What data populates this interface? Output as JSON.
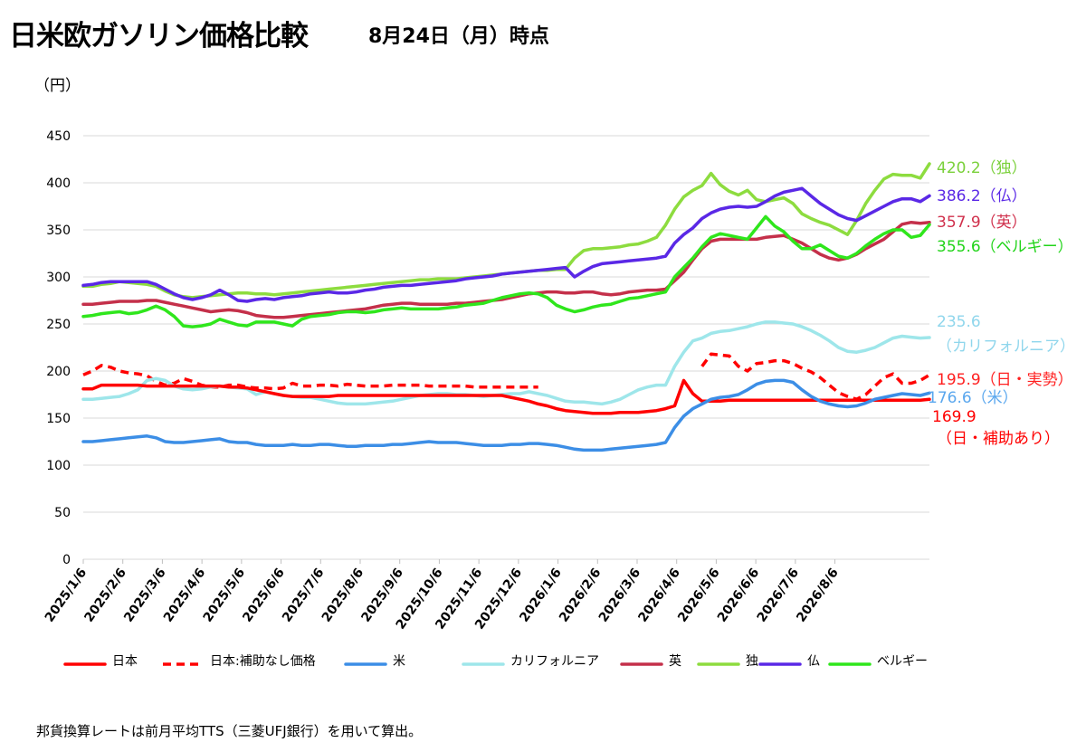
{
  "header": {
    "title": "日米欧ガソリン価格比較",
    "subtitle": "8月24日（月）時点",
    "y_unit": "（円）"
  },
  "footnote": "邦貨換算レートは前月平均TTS（三菱UFJ銀行）を用いて算出。",
  "chart_data": {
    "type": "line",
    "x_unit": "week",
    "x_start": "2025/1/6",
    "x_ticks": [
      "2025/1/6",
      "2025/2/6",
      "2025/3/6",
      "2025/4/6",
      "2025/5/6",
      "2025/6/6",
      "2025/7/6",
      "2025/8/6",
      "2025/9/6",
      "2025/10/6",
      "2025/11/6",
      "2025/12/6",
      "2026/1/6",
      "2026/2/6",
      "2026/3/6",
      "2026/4/6",
      "2026/5/6",
      "2026/6/6",
      "2026/7/6",
      "2026/8/6"
    ],
    "y_ticks": [
      0,
      50,
      100,
      150,
      200,
      250,
      300,
      350,
      400,
      450
    ],
    "ylim": [
      0,
      450
    ],
    "grid": true,
    "legend_position": "bottom",
    "series": [
      {
        "name": "日本",
        "color": "#ff0000",
        "dash": false,
        "width": 3.5,
        "values": [
          181,
          181,
          185,
          185,
          185,
          185,
          185,
          184,
          184,
          184,
          184,
          184,
          184,
          184,
          184,
          184,
          183,
          183,
          182,
          180,
          178,
          176,
          174,
          173,
          173,
          173,
          173,
          173,
          174,
          174,
          174,
          174,
          174,
          174,
          174,
          174,
          174,
          174,
          174,
          174,
          174,
          174,
          174,
          174,
          174,
          174,
          174,
          172,
          170,
          168,
          165,
          163,
          160,
          158,
          157,
          156,
          155,
          155,
          155,
          156,
          156,
          156,
          157,
          158,
          160,
          163,
          190,
          176,
          168,
          168,
          168,
          169,
          169,
          169,
          169,
          169,
          169,
          169,
          169,
          169,
          169,
          169,
          169,
          169,
          169,
          169,
          169,
          169,
          169,
          169,
          169,
          169,
          169,
          169.9
        ],
        "end_label": [
          "169.9",
          "（日・補助あり）"
        ],
        "label_color": "#ff0000"
      },
      {
        "name": "日本:補助なし価格",
        "color": "#ff0000",
        "dash": true,
        "width": 3.5,
        "values": [
          196,
          200,
          206,
          204,
          200,
          198,
          197,
          195,
          189,
          185,
          187,
          192,
          189,
          185,
          183,
          183,
          185,
          185,
          183,
          182,
          182,
          181,
          182,
          187,
          184,
          184,
          185,
          185,
          184,
          186,
          185,
          184,
          184,
          184,
          185,
          185,
          185,
          185,
          184,
          184,
          184,
          184,
          184,
          183,
          183,
          183,
          183,
          183,
          183,
          183,
          183,
          null,
          null,
          null,
          null,
          null,
          null,
          null,
          null,
          null,
          null,
          null,
          null,
          null,
          null,
          null,
          null,
          null,
          205,
          218,
          217,
          216,
          205,
          200,
          208,
          209,
          211,
          211,
          208,
          203,
          199,
          193,
          185,
          177,
          173,
          170,
          175,
          184,
          193,
          197,
          187,
          187,
          190,
          195.9
        ],
        "end_label": [
          "195.9（日・実勢）"
        ],
        "label_color": "#ff2020"
      },
      {
        "name": "米",
        "color": "#3c8ee6",
        "dash": false,
        "width": 3.5,
        "values": [
          125,
          125,
          126,
          127,
          128,
          129,
          130,
          131,
          129,
          125,
          124,
          124,
          125,
          126,
          127,
          128,
          125,
          124,
          124,
          122,
          121,
          121,
          121,
          122,
          121,
          121,
          122,
          122,
          121,
          120,
          120,
          121,
          121,
          121,
          122,
          122,
          123,
          124,
          125,
          124,
          124,
          124,
          123,
          122,
          121,
          121,
          121,
          122,
          122,
          123,
          123,
          122,
          121,
          119,
          117,
          116,
          116,
          116,
          117,
          118,
          119,
          120,
          121,
          122,
          124,
          140,
          152,
          160,
          165,
          170,
          172,
          173,
          175,
          180,
          186,
          189,
          190,
          190,
          188,
          180,
          173,
          168,
          165,
          163,
          162,
          163,
          166,
          170,
          172,
          174,
          176,
          175,
          174,
          176.6
        ],
        "end_label": [
          "176.6（米）"
        ],
        "label_color": "#5aa7ee"
      },
      {
        "name": "カリフォルニア",
        "color": "#9ee6ea",
        "dash": false,
        "width": 3.5,
        "values": [
          170,
          170,
          171,
          172,
          173,
          176,
          180,
          190,
          192,
          190,
          184,
          181,
          180,
          181,
          183,
          184,
          183,
          182,
          181,
          175,
          178,
          176,
          174,
          173,
          172,
          172,
          170,
          168,
          166,
          165,
          165,
          165,
          166,
          167,
          168,
          170,
          172,
          174,
          175,
          176,
          176,
          175,
          175,
          174,
          173,
          174,
          175,
          176,
          176,
          178,
          176,
          174,
          171,
          168,
          167,
          167,
          166,
          165,
          167,
          170,
          175,
          180,
          183,
          185,
          185,
          205,
          220,
          232,
          235,
          240,
          242,
          243,
          245,
          247,
          250,
          252,
          252,
          251,
          250,
          247,
          243,
          238,
          232,
          225,
          221,
          220,
          222,
          225,
          230,
          235,
          237,
          236,
          235,
          235.6
        ],
        "end_label": [
          "235.6",
          "（カリフォルニア）"
        ],
        "label_color": "#8fd6ec"
      },
      {
        "name": "英",
        "color": "#c4304a",
        "dash": false,
        "width": 3.5,
        "values": [
          271,
          271,
          272,
          273,
          274,
          274,
          274,
          275,
          275,
          273,
          271,
          269,
          267,
          265,
          263,
          264,
          265,
          264,
          262,
          259,
          258,
          257,
          257,
          258,
          259,
          260,
          261,
          262,
          263,
          264,
          265,
          266,
          268,
          270,
          271,
          272,
          272,
          271,
          271,
          271,
          271,
          272,
          272,
          273,
          274,
          275,
          276,
          278,
          280,
          282,
          283,
          284,
          284,
          283,
          283,
          284,
          284,
          282,
          281,
          282,
          284,
          285,
          286,
          286,
          287,
          296,
          305,
          318,
          330,
          338,
          340,
          340,
          340,
          340,
          340,
          342,
          343,
          344,
          340,
          336,
          330,
          324,
          320,
          318,
          320,
          324,
          330,
          335,
          340,
          348,
          356,
          358,
          357,
          357.9
        ],
        "end_label": [
          "357.9（英）"
        ],
        "label_color": "#d0304c"
      },
      {
        "name": "独",
        "color": "#8ddc3f",
        "dash": false,
        "width": 3.5,
        "values": [
          290,
          290,
          292,
          293,
          295,
          294,
          293,
          292,
          290,
          285,
          281,
          279,
          278,
          279,
          280,
          281,
          282,
          283,
          283,
          282,
          282,
          281,
          282,
          283,
          284,
          285,
          286,
          287,
          288,
          289,
          290,
          291,
          292,
          293,
          294,
          295,
          296,
          297,
          297,
          298,
          298,
          298,
          299,
          300,
          301,
          302,
          303,
          304,
          305,
          306,
          307,
          307,
          308,
          308,
          320,
          328,
          330,
          330,
          331,
          332,
          334,
          335,
          338,
          342,
          355,
          372,
          385,
          392,
          397,
          410,
          398,
          391,
          387,
          392,
          382,
          380,
          382,
          384,
          378,
          367,
          362,
          358,
          355,
          350,
          345,
          360,
          378,
          392,
          404,
          409,
          408,
          408,
          405,
          420.2
        ],
        "end_label": [
          "420.2（独）"
        ],
        "label_color": "#7ad03a"
      },
      {
        "name": "仏",
        "color": "#5a28e6",
        "dash": false,
        "width": 3.5,
        "values": [
          291,
          292,
          294,
          295,
          295,
          295,
          295,
          295,
          292,
          287,
          282,
          278,
          276,
          278,
          281,
          286,
          281,
          275,
          274,
          276,
          277,
          276,
          278,
          279,
          280,
          282,
          283,
          284,
          283,
          283,
          284,
          286,
          287,
          289,
          290,
          291,
          291,
          292,
          293,
          294,
          295,
          296,
          298,
          299,
          300,
          301,
          303,
          304,
          305,
          306,
          307,
          308,
          309,
          310,
          300,
          306,
          311,
          314,
          315,
          316,
          317,
          318,
          319,
          320,
          322,
          336,
          345,
          352,
          362,
          368,
          372,
          374,
          375,
          374,
          375,
          380,
          386,
          390,
          392,
          394,
          386,
          378,
          372,
          366,
          362,
          360,
          365,
          370,
          375,
          380,
          383,
          383,
          380,
          386.2
        ],
        "end_label": [
          "386.2（仏）"
        ],
        "label_color": "#5a28e6"
      },
      {
        "name": "ベルギー",
        "color": "#2fe61c",
        "dash": false,
        "width": 3.5,
        "values": [
          258,
          259,
          261,
          262,
          263,
          261,
          262,
          265,
          269,
          265,
          258,
          248,
          247,
          248,
          250,
          255,
          252,
          249,
          248,
          252,
          252,
          252,
          250,
          248,
          255,
          258,
          259,
          260,
          262,
          263,
          263,
          262,
          263,
          265,
          266,
          267,
          266,
          266,
          266,
          266,
          267,
          268,
          270,
          271,
          272,
          275,
          278,
          280,
          282,
          283,
          282,
          278,
          270,
          266,
          263,
          265,
          268,
          270,
          271,
          274,
          277,
          278,
          280,
          282,
          284,
          300,
          310,
          320,
          332,
          342,
          346,
          344,
          342,
          340,
          352,
          364,
          354,
          348,
          338,
          330,
          330,
          334,
          328,
          322,
          320,
          325,
          333,
          340,
          346,
          350,
          350,
          342,
          344,
          355.6
        ],
        "end_label": [
          "355.6（ベルギー）"
        ],
        "label_color": "#22d41a"
      }
    ]
  }
}
